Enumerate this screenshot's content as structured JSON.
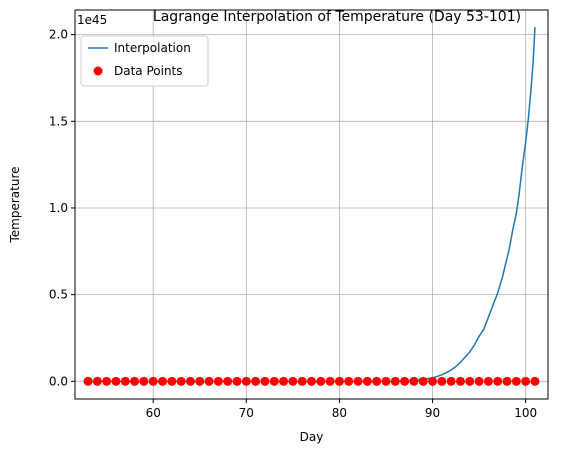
{
  "chart_data": {
    "type": "line",
    "title": "Lagrange Interpolation of Temperature (Day 53-101)",
    "xlabel": "Day",
    "ylabel": "Temperature",
    "y_offset_label": "1e45",
    "xlim": [
      51.6,
      102.4
    ],
    "ylim": [
      -0.102,
      2.142
    ],
    "x_ticks": [
      60,
      70,
      80,
      90,
      100
    ],
    "x_tick_labels": [
      "60",
      "70",
      "80",
      "90",
      "100"
    ],
    "y_ticks": [
      0.0,
      0.5,
      1.0,
      1.5,
      2.0
    ],
    "y_tick_labels": [
      "0.0",
      "0.5",
      "1.0",
      "1.5",
      "2.0"
    ],
    "grid": true,
    "legend_position": "top-left",
    "colors": {
      "line": "#1f77b4",
      "points": "#ff0000",
      "grid": "#b0b0b0",
      "axes": "#000000"
    },
    "series": [
      {
        "name": "Interpolation",
        "kind": "line",
        "x": [
          53,
          84,
          86,
          87,
          88,
          89,
          90,
          90.5,
          91,
          91.5,
          92,
          92.5,
          93,
          93.5,
          94,
          94.5,
          95,
          95.5,
          96,
          96.5,
          97,
          97.5,
          98,
          98.3,
          98.6,
          99,
          99.3,
          99.6,
          100,
          100.3,
          100.6,
          100.8,
          101
        ],
        "y": [
          0.0,
          0.0,
          0.0,
          0.003,
          0.007,
          0.012,
          0.02,
          0.028,
          0.038,
          0.05,
          0.066,
          0.085,
          0.11,
          0.14,
          0.17,
          0.21,
          0.26,
          0.3,
          0.37,
          0.44,
          0.51,
          0.6,
          0.71,
          0.78,
          0.87,
          0.97,
          1.08,
          1.22,
          1.38,
          1.52,
          1.7,
          1.84,
          2.04
        ]
      },
      {
        "name": "Data Points",
        "kind": "scatter",
        "x": [
          53,
          54,
          55,
          56,
          57,
          58,
          59,
          60,
          61,
          62,
          63,
          64,
          65,
          66,
          67,
          68,
          69,
          70,
          71,
          72,
          73,
          74,
          75,
          76,
          77,
          78,
          79,
          80,
          81,
          82,
          83,
          84,
          85,
          86,
          87,
          88,
          89,
          90,
          91,
          92,
          93,
          94,
          95,
          96,
          97,
          98,
          99,
          100,
          101
        ],
        "y": [
          0,
          0,
          0,
          0,
          0,
          0,
          0,
          0,
          0,
          0,
          0,
          0,
          0,
          0,
          0,
          0,
          0,
          0,
          0,
          0,
          0,
          0,
          0,
          0,
          0,
          0,
          0,
          0,
          0,
          0,
          0,
          0,
          0,
          0,
          0,
          0,
          0,
          0,
          0,
          0,
          0,
          0,
          0,
          0,
          0,
          0,
          0,
          0,
          0
        ]
      }
    ]
  }
}
